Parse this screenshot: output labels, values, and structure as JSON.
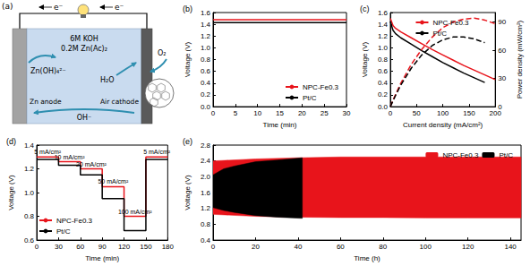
{
  "diagram": {
    "label": "(a)",
    "electrons": [
      "e⁻",
      "e⁻"
    ],
    "electrolyte": [
      "6M KOH",
      "0.2M Zn(Ac)₂"
    ],
    "anode": "Zn anode",
    "cathode": "Air cathode",
    "species": {
      "zincate": "Zn(OH)₄²⁻",
      "water": "H₂O",
      "oxygen": "O₂",
      "hydroxide": "OH⁻"
    }
  },
  "chart_data": [
    {
      "type": "line",
      "title": "(b)",
      "x_label": "Time (min)",
      "y_label": "Voltage (V)",
      "xlim": [
        0,
        30
      ],
      "xticks": [
        0,
        5,
        10,
        15,
        20,
        25,
        30
      ],
      "ylim": [
        0,
        1.6
      ],
      "yticks": [
        {
          "value": 0,
          "label": "0.0"
        },
        0.2,
        0.4,
        0.6,
        0.8,
        {
          "value": 1,
          "label": "1.0"
        },
        1.2,
        1.4,
        1.6
      ],
      "grid": false,
      "legend": "lower right",
      "series": [
        {
          "name": "NPC-Fe0.3",
          "color": "#e8141b",
          "line_style": "solid",
          "x": [
            0,
            5,
            10,
            15,
            20,
            25,
            30
          ],
          "values": [
            1.48,
            1.48,
            1.48,
            1.48,
            1.48,
            1.48,
            1.48
          ]
        },
        {
          "name": "Pt/C",
          "color": "#000000",
          "line_style": "solid",
          "x": [
            0,
            5,
            10,
            15,
            20,
            25,
            30
          ],
          "values": [
            1.43,
            1.43,
            1.43,
            1.43,
            1.43,
            1.43,
            1.43
          ]
        }
      ]
    },
    {
      "type": "line",
      "title": "(c)",
      "x_label": "Current density (mA/cm²)",
      "y_label": "Voltage (V)",
      "y2_label": "Power density (mW/cm²)",
      "xlim": [
        0,
        200
      ],
      "xticks": [
        0,
        50,
        100,
        150,
        200
      ],
      "ylim": [
        0,
        1.6
      ],
      "yticks": [
        {
          "value": 0,
          "label": "0.0"
        },
        0.2,
        0.4,
        0.6,
        0.8,
        {
          "value": 1,
          "label": "1.0"
        },
        1.2,
        1.4,
        1.6
      ],
      "y2lim": [
        0,
        100
      ],
      "y2ticks": [
        0,
        30,
        60,
        90
      ],
      "grid": false,
      "legend": "upper center",
      "series": [
        {
          "name": "NPC-Fe0.3",
          "color": "#e8141b",
          "line_style": "solid",
          "x": [
            0,
            5,
            10,
            20,
            40,
            60,
            80,
            100,
            120,
            140,
            160,
            180,
            200
          ],
          "values": [
            1.5,
            1.38,
            1.33,
            1.27,
            1.17,
            1.07,
            0.97,
            0.88,
            0.79,
            0.7,
            0.62,
            0.54,
            0.46
          ]
        },
        {
          "name": "Pt/C",
          "color": "#000000",
          "line_style": "solid",
          "x": [
            0,
            5,
            10,
            20,
            40,
            60,
            80,
            100,
            120,
            140,
            160,
            180
          ],
          "values": [
            1.45,
            1.3,
            1.24,
            1.17,
            1.06,
            0.95,
            0.85,
            0.75,
            0.66,
            0.57,
            0.49,
            0.41
          ]
        },
        {
          "name": "NPC-Fe0.3",
          "color": "#e8141b",
          "line_style": "dashed",
          "axis": "y2",
          "x": [
            0,
            5,
            10,
            20,
            40,
            60,
            80,
            100,
            120,
            140,
            160,
            180,
            200
          ],
          "values": [
            0,
            7,
            13,
            25,
            45,
            61,
            74,
            84,
            90,
            93,
            94,
            92,
            88
          ]
        },
        {
          "name": "Pt/C",
          "color": "#000000",
          "line_style": "dashed",
          "axis": "y2",
          "x": [
            0,
            5,
            10,
            20,
            40,
            60,
            80,
            100,
            120,
            140,
            160,
            180
          ],
          "values": [
            0,
            6,
            12,
            23,
            41,
            55,
            65,
            71,
            74,
            74,
            72,
            68
          ]
        }
      ]
    },
    {
      "type": "line",
      "title": "(d)",
      "x_label": "Time (min)",
      "y_label": "Voltage (V)",
      "xlim": [
        0,
        180
      ],
      "xticks": [
        0,
        30,
        60,
        90,
        120,
        150,
        180
      ],
      "ylim": [
        0.6,
        1.4
      ],
      "yticks": [
        0.6,
        0.8,
        {
          "value": 1,
          "label": "1.0"
        },
        1.2,
        1.4
      ],
      "grid": false,
      "legend": "lower left",
      "annotations": [
        "5 mA/cm²",
        "10 mA/cm²",
        "20 mA/cm²",
        "50 mA/cm²",
        "100 mA/cm²",
        "5 mA/cm²"
      ],
      "series": [
        {
          "name": "NPC-Fe0.3",
          "color": "#e8141b",
          "line_style": "solid",
          "x": [
            0,
            30,
            30,
            60,
            60,
            90,
            90,
            120,
            120,
            150,
            150,
            180
          ],
          "values": [
            1.3,
            1.3,
            1.26,
            1.26,
            1.2,
            1.2,
            1.05,
            1.05,
            0.8,
            0.8,
            1.3,
            1.3
          ]
        },
        {
          "name": "Pt/C",
          "color": "#000000",
          "line_style": "solid",
          "x": [
            0,
            30,
            30,
            60,
            60,
            90,
            90,
            120,
            120,
            150,
            150,
            180
          ],
          "values": [
            1.28,
            1.28,
            1.23,
            1.23,
            1.15,
            1.15,
            0.95,
            0.95,
            0.68,
            0.68,
            1.28,
            1.28
          ]
        }
      ]
    },
    {
      "type": "band",
      "title": "(e)",
      "x_label": "Time (h)",
      "y_label": "Voltage (V)",
      "xlim": [
        0,
        145
      ],
      "xticks": [
        0,
        20,
        40,
        60,
        80,
        100,
        120,
        140
      ],
      "ylim": [
        0.4,
        2.8
      ],
      "yticks": [
        0.4,
        0.8,
        1.2,
        1.6,
        {
          "value": 2,
          "label": "2.0"
        },
        2.4,
        2.8
      ],
      "grid": false,
      "legend": "upper right",
      "series": [
        {
          "name": "NPC-Fe0.3",
          "color": "#e8141b",
          "x": [
            0,
            20,
            40,
            60,
            80,
            100,
            120,
            145
          ],
          "upper": [
            2.4,
            2.45,
            2.48,
            2.5,
            2.5,
            2.5,
            2.5,
            2.5
          ],
          "lower": [
            1.05,
            1.0,
            0.98,
            0.97,
            0.97,
            0.96,
            0.96,
            0.96
          ]
        },
        {
          "name": "Pt/C",
          "color": "#000000",
          "x": [
            0,
            5,
            10,
            20,
            30,
            42
          ],
          "upper": [
            2.05,
            2.2,
            2.27,
            2.38,
            2.42,
            2.48
          ],
          "lower": [
            1.22,
            1.15,
            1.1,
            1.02,
            0.98,
            0.95
          ]
        }
      ]
    }
  ]
}
